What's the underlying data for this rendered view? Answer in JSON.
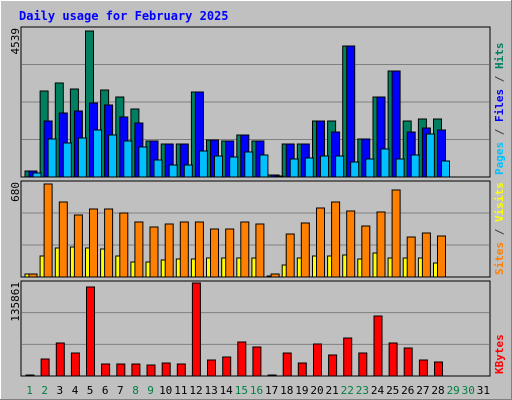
{
  "chart_data": {
    "type": "bar",
    "title": "Daily usage for February 2025",
    "x": [
      "1",
      "2",
      "3",
      "4",
      "5",
      "6",
      "7",
      "8",
      "9",
      "10",
      "11",
      "12",
      "13",
      "14",
      "15",
      "16",
      "17",
      "18",
      "19",
      "20",
      "21",
      "22",
      "23",
      "24",
      "25",
      "26",
      "27",
      "28",
      "29",
      "30",
      "31"
    ],
    "weekend_days": [
      "1",
      "2",
      "8",
      "9",
      "15",
      "16",
      "22",
      "23",
      "29",
      "30"
    ],
    "colors": {
      "background": "#c0c0c0",
      "border": "#000000",
      "title": "#0000ff",
      "grid": "#808080",
      "tick_weekday": "#000000",
      "tick_weekend": "#008040"
    },
    "panels": [
      {
        "id": "hits-files-pages",
        "ymax_label": "4539",
        "ymax": 4539,
        "legend": [
          {
            "text": "Pages",
            "color": "#00c0ff"
          },
          {
            "text": " / ",
            "color": "#404040"
          },
          {
            "text": "Files",
            "color": "#0000ff"
          },
          {
            "text": " / ",
            "color": "#404040"
          },
          {
            "text": "Hits",
            "color": "#008060"
          }
        ],
        "series": [
          {
            "name": "Hits",
            "color": "#008060",
            "values": [
              180,
              2630,
              2890,
              2690,
              4480,
              2670,
              2450,
              2090,
              1100,
              1000,
              1000,
              2610,
              1130,
              1090,
              1290,
              1110,
              70,
              1010,
              1010,
              1720,
              1710,
              4010,
              1170,
              2450,
              3240,
              1720,
              1770,
              1770,
              0,
              0,
              0
            ]
          },
          {
            "name": "Files",
            "color": "#0000ff",
            "values": [
              180,
              1720,
              1960,
              2010,
              2270,
              2200,
              1830,
              1650,
              1100,
              1000,
              1000,
              2610,
              1130,
              1090,
              1290,
              1110,
              70,
              1010,
              1010,
              1720,
              1370,
              4010,
              1170,
              2450,
              3240,
              1380,
              1490,
              1450,
              0,
              0,
              0
            ]
          },
          {
            "name": "Pages",
            "color": "#00c0ff",
            "values": [
              130,
              1180,
              1050,
              1190,
              1440,
              1290,
              1110,
              910,
              510,
              360,
              360,
              810,
              650,
              620,
              770,
              680,
              40,
              560,
              570,
              650,
              640,
              450,
              560,
              870,
              550,
              690,
              1330,
              500,
              0,
              0,
              0
            ]
          }
        ]
      },
      {
        "id": "visits-sites",
        "ymax_label": "680",
        "ymax": 680,
        "legend": [
          {
            "text": "Sites",
            "color": "#ff8000"
          },
          {
            "text": " / ",
            "color": "#404040"
          },
          {
            "text": "Visits",
            "color": "#ffff00"
          }
        ],
        "series": [
          {
            "name": "Visits",
            "color": "#ffff00",
            "values": [
              20,
              150,
              210,
              220,
              210,
              200,
              150,
              110,
              110,
              120,
              130,
              130,
              140,
              140,
              140,
              140,
              10,
              90,
              140,
              150,
              150,
              160,
              130,
              170,
              140,
              140,
              140,
              100,
              0,
              0,
              0
            ]
          },
          {
            "name": "Sites",
            "color": "#ff8000",
            "values": [
              20,
              670,
              540,
              450,
              490,
              490,
              460,
              400,
              360,
              380,
              400,
              400,
              350,
              350,
              400,
              380,
              20,
              310,
              390,
              500,
              540,
              480,
              370,
              470,
              630,
              290,
              320,
              300,
              0,
              0,
              0
            ]
          }
        ]
      },
      {
        "id": "kbytes",
        "ymax_label": "135861",
        "ymax": 135861,
        "legend": [
          {
            "text": "KBytes",
            "color": "#ff0000"
          }
        ],
        "series": [
          {
            "name": "KBytes",
            "color": "#ff0000",
            "values": [
              1500,
              24500,
              47500,
              33000,
              130000,
              18000,
              18000,
              18000,
              16500,
              19000,
              17000,
              135861,
              23000,
              27500,
              50000,
              42500,
              1500,
              33000,
              19000,
              47000,
              30000,
              55000,
              33500,
              87000,
              48000,
              41000,
              23000,
              20000,
              0,
              0,
              0
            ]
          }
        ]
      }
    ]
  }
}
